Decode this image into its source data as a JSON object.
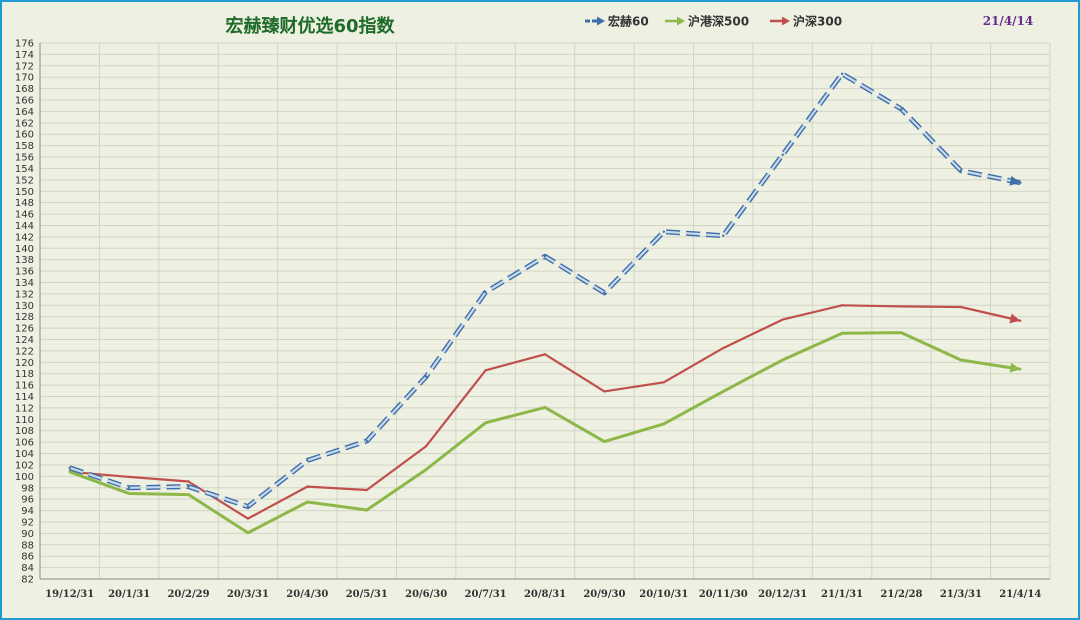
{
  "chart_data": {
    "type": "line",
    "title": "宏赫臻财优选60指数",
    "date_label": "21/4/14",
    "categories": [
      "19/12/31",
      "20/1/31",
      "20/2/29",
      "20/3/31",
      "20/4/30",
      "20/5/31",
      "20/6/30",
      "20/7/31",
      "20/8/31",
      "20/9/30",
      "20/10/31",
      "20/11/30",
      "20/12/31",
      "21/1/31",
      "21/2/28",
      "21/3/31",
      "21/4/14"
    ],
    "ylim": [
      82,
      176
    ],
    "ytick_step": 2,
    "grid": true,
    "legend_position": "top",
    "series": [
      {
        "name": "宏赫60",
        "color": "#5b8fc9",
        "style": "dashed",
        "values": [
          101.5,
          98.0,
          98.2,
          94.7,
          102.8,
          106.2,
          117.5,
          132.3,
          138.6,
          132.2,
          142.9,
          142.2,
          156.4,
          170.6,
          164.4,
          153.6,
          151.5
        ]
      },
      {
        "name": "沪港深500",
        "color": "#8db849",
        "style": "solid",
        "values": [
          100.8,
          97.0,
          96.8,
          90.1,
          95.5,
          94.1,
          101.2,
          109.4,
          112.1,
          106.1,
          109.2,
          114.9,
          120.4,
          125.1,
          125.2,
          120.4,
          118.8
        ]
      },
      {
        "name": "沪深300",
        "color": "#c0504d",
        "style": "solid",
        "values": [
          100.8,
          99.9,
          99.1,
          92.6,
          98.2,
          97.6,
          105.3,
          118.6,
          121.4,
          114.9,
          116.5,
          122.5,
          127.5,
          130.0,
          129.8,
          129.7,
          127.3
        ]
      }
    ]
  }
}
